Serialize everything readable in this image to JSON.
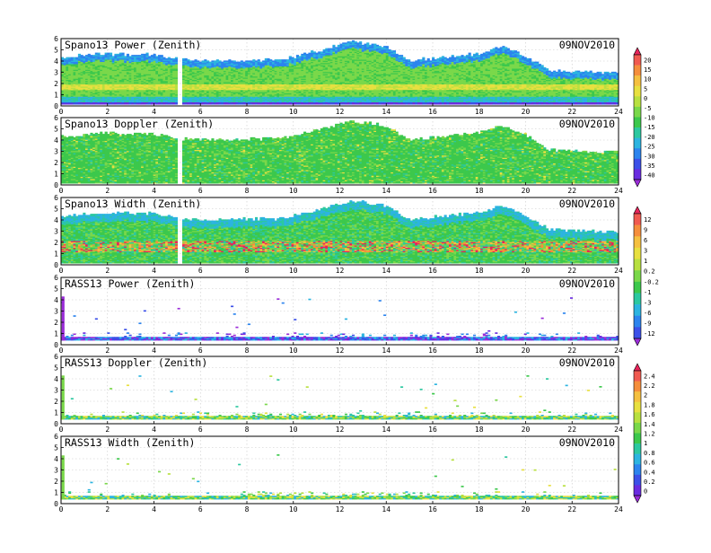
{
  "chart_data": [
    {
      "type": "heatmap",
      "title": "Spano13 Power (Zenith)",
      "date": "09NOV2010",
      "xlim": [
        0,
        24
      ],
      "ylim": [
        0,
        6
      ],
      "xticks": [
        "0",
        "2",
        "4",
        "6",
        "8",
        "10",
        "12",
        "14",
        "16",
        "18",
        "20",
        "22",
        "24"
      ],
      "yticks": [
        "0",
        "1",
        "2",
        "3",
        "4",
        "5",
        "6"
      ],
      "colorbar": "power",
      "top_profile": [
        [
          0,
          4.2
        ],
        [
          1.5,
          4.6
        ],
        [
          4,
          4.5
        ],
        [
          5.5,
          4.0
        ],
        [
          7.5,
          4.0
        ],
        [
          9.5,
          4.1
        ],
        [
          10.5,
          4.6
        ],
        [
          11.5,
          5.1
        ],
        [
          12.5,
          5.7
        ],
        [
          14,
          5.2
        ],
        [
          15,
          4.0
        ],
        [
          16.5,
          4.3
        ],
        [
          18,
          4.6
        ],
        [
          19,
          5.3
        ],
        [
          20,
          4.4
        ],
        [
          21,
          3.1
        ],
        [
          22,
          3.0
        ],
        [
          24,
          2.9
        ]
      ],
      "band_height": 1.7,
      "gap_hours": [
        5.05,
        5.2
      ]
    },
    {
      "type": "heatmap",
      "title": "Spano13 Doppler (Zenith)",
      "date": "09NOV2010",
      "xlim": [
        0,
        24
      ],
      "ylim": [
        0,
        6
      ],
      "xticks": [
        "0",
        "2",
        "4",
        "6",
        "8",
        "10",
        "12",
        "14",
        "16",
        "18",
        "20",
        "22",
        "24"
      ],
      "yticks": [
        "0",
        "1",
        "2",
        "3",
        "4",
        "5",
        "6"
      ],
      "colorbar": "power",
      "top_profile": [
        [
          0,
          4.2
        ],
        [
          1.5,
          4.6
        ],
        [
          4,
          4.5
        ],
        [
          5.5,
          4.0
        ],
        [
          7.5,
          4.0
        ],
        [
          9.5,
          4.1
        ],
        [
          10.5,
          4.6
        ],
        [
          11.5,
          5.1
        ],
        [
          12.5,
          5.7
        ],
        [
          14,
          5.2
        ],
        [
          15,
          4.0
        ],
        [
          16.5,
          4.3
        ],
        [
          18,
          4.6
        ],
        [
          19,
          5.3
        ],
        [
          20,
          4.4
        ],
        [
          21,
          3.1
        ],
        [
          22,
          3.0
        ],
        [
          24,
          2.9
        ]
      ],
      "band_height": 0,
      "gap_hours": [
        5.05,
        5.2
      ]
    },
    {
      "type": "heatmap",
      "title": "Spano13 Width (Zenith)",
      "date": "09NOV2010",
      "xlim": [
        0,
        24
      ],
      "ylim": [
        0,
        6
      ],
      "xticks": [
        "0",
        "2",
        "4",
        "6",
        "8",
        "10",
        "12",
        "14",
        "16",
        "18",
        "20",
        "22",
        "24"
      ],
      "yticks": [
        "0",
        "1",
        "2",
        "3",
        "4",
        "5",
        "6"
      ],
      "colorbar": "width",
      "top_profile": [
        [
          0,
          4.2
        ],
        [
          1.5,
          4.6
        ],
        [
          4,
          4.5
        ],
        [
          5.5,
          4.0
        ],
        [
          7.5,
          4.0
        ],
        [
          9.5,
          4.1
        ],
        [
          10.5,
          4.6
        ],
        [
          11.5,
          5.1
        ],
        [
          12.5,
          5.7
        ],
        [
          14,
          5.2
        ],
        [
          15,
          4.0
        ],
        [
          16.5,
          4.3
        ],
        [
          18,
          4.6
        ],
        [
          19,
          5.3
        ],
        [
          20,
          4.4
        ],
        [
          21,
          3.1
        ],
        [
          22,
          3.0
        ],
        [
          24,
          2.9
        ]
      ],
      "band_height": 1.6,
      "gap_hours": [
        5.05,
        5.2
      ]
    },
    {
      "type": "heatmap",
      "title": "RASS13 Power (Zenith)",
      "date": "09NOV2010",
      "xlim": [
        0,
        24
      ],
      "ylim": [
        0,
        6
      ],
      "xticks": [
        "0",
        "2",
        "4",
        "6",
        "8",
        "10",
        "12",
        "14",
        "16",
        "18",
        "20",
        "22",
        "24"
      ],
      "yticks": [
        "0",
        "1",
        "2",
        "3",
        "4",
        "5",
        "6"
      ],
      "colorbar": "width",
      "rass_layer": [
        0.4,
        1.1
      ]
    },
    {
      "type": "heatmap",
      "title": "RASS13 Doppler (Zenith)",
      "date": "09NOV2010",
      "xlim": [
        0,
        24
      ],
      "ylim": [
        0,
        6
      ],
      "xticks": [
        "0",
        "2",
        "4",
        "6",
        "8",
        "10",
        "12",
        "14",
        "16",
        "18",
        "20",
        "22",
        "24"
      ],
      "yticks": [
        "0",
        "1",
        "2",
        "3",
        "4",
        "5",
        "6"
      ],
      "colorbar": "rass",
      "rass_layer": [
        0.4,
        1.1
      ]
    },
    {
      "type": "heatmap",
      "title": "RASS13 Width (Zenith)",
      "date": "09NOV2010",
      "xlim": [
        0,
        24
      ],
      "ylim": [
        0,
        6
      ],
      "xticks": [
        "0",
        "2",
        "4",
        "6",
        "8",
        "10",
        "12",
        "14",
        "16",
        "18",
        "20",
        "22",
        "24"
      ],
      "yticks": [
        "0",
        "1",
        "2",
        "3",
        "4",
        "5",
        "6"
      ],
      "colorbar": "rass",
      "rass_layer": [
        0.4,
        1.1
      ]
    }
  ],
  "colorbars": {
    "power": {
      "labels": [
        "20",
        "15",
        "10",
        "5",
        "0",
        "-5",
        "-10",
        "-15",
        "-20",
        "-25",
        "-30",
        "-35",
        "-40"
      ],
      "colors": [
        "#e8245a",
        "#f05a50",
        "#f58e3c",
        "#f5c040",
        "#e8e040",
        "#b8e040",
        "#7ad84a",
        "#3cc84c",
        "#2cc8a0",
        "#2cb4e0",
        "#2c84ee",
        "#3c50e8",
        "#6a2ce0",
        "#9a2cd8"
      ]
    },
    "width": {
      "labels": [
        "12",
        "9",
        "6",
        "3",
        "1",
        "0.2",
        "-0.2",
        "-1",
        "-3",
        "-6",
        "-9",
        "-12"
      ],
      "colors": [
        "#e8245a",
        "#f05a50",
        "#f58e3c",
        "#f5c040",
        "#e8e040",
        "#b8e040",
        "#7ad84a",
        "#3cc84c",
        "#2cc8a0",
        "#2cb4e0",
        "#2c84ee",
        "#3c50e8",
        "#9a2cd8"
      ]
    },
    "rass": {
      "labels": [
        "2.4",
        "2.2",
        "2",
        "1.8",
        "1.6",
        "1.4",
        "1.2",
        "1",
        "0.8",
        "0.6",
        "0.4",
        "0.2",
        "0"
      ],
      "colors": [
        "#e8245a",
        "#f05a50",
        "#f58e3c",
        "#f5c040",
        "#e8e040",
        "#b8e040",
        "#7ad84a",
        "#3cc84c",
        "#2cc8a0",
        "#2cb4e0",
        "#2c84ee",
        "#3c50e8",
        "#6a2ce0",
        "#9a2cd8"
      ]
    }
  }
}
